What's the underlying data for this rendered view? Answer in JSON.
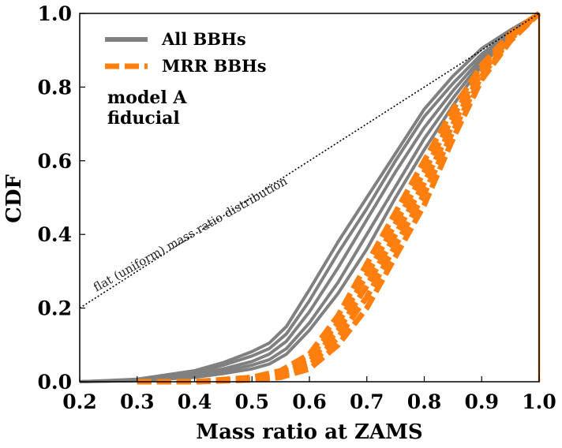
{
  "chart_data": {
    "type": "line",
    "xlabel": "Mass ratio at ZAMS",
    "ylabel": "CDF",
    "xlim": [
      0.2,
      1.0
    ],
    "ylim": [
      0.0,
      1.0
    ],
    "xticks": [
      "0.2",
      "0.3",
      "0.4",
      "0.5",
      "0.6",
      "0.7",
      "0.8",
      "0.9",
      "1.0"
    ],
    "yticks": [
      "0.0",
      "0.2",
      "0.4",
      "0.6",
      "0.8",
      "1.0"
    ],
    "legend": {
      "placement": "top-left",
      "entries": [
        {
          "label": "All BBHs",
          "color": "#808080",
          "style": "solid"
        },
        {
          "label": "MRR BBHs",
          "color": "#ff7f0e",
          "style": "dashed"
        }
      ]
    },
    "annotations": {
      "model_line1": "model A",
      "model_line2": "fiducial",
      "reference_label": "flat (uniform) mass ratio distribution"
    },
    "reference_line": {
      "x": [
        0.2,
        1.0
      ],
      "y": [
        0.2,
        1.0
      ]
    },
    "vertical_line": {
      "x": 1.0,
      "color": "#ff7f0e"
    },
    "series": [
      {
        "group": "all",
        "x": [
          0.2,
          0.3,
          0.4,
          0.45,
          0.5,
          0.53,
          0.56,
          0.6,
          0.65,
          0.7,
          0.75,
          0.8,
          0.85,
          0.9,
          0.95,
          1.0
        ],
        "y": [
          0.0,
          0.007,
          0.03,
          0.052,
          0.082,
          0.105,
          0.15,
          0.25,
          0.38,
          0.5,
          0.62,
          0.74,
          0.83,
          0.905,
          0.955,
          1.0
        ]
      },
      {
        "group": "all",
        "x": [
          0.2,
          0.3,
          0.4,
          0.45,
          0.5,
          0.53,
          0.56,
          0.6,
          0.65,
          0.7,
          0.75,
          0.8,
          0.85,
          0.9,
          0.95,
          1.0
        ],
        "y": [
          0.0,
          0.006,
          0.025,
          0.045,
          0.07,
          0.09,
          0.13,
          0.22,
          0.35,
          0.47,
          0.6,
          0.72,
          0.81,
          0.89,
          0.95,
          1.0
        ]
      },
      {
        "group": "all",
        "x": [
          0.2,
          0.3,
          0.4,
          0.45,
          0.5,
          0.53,
          0.56,
          0.6,
          0.65,
          0.7,
          0.75,
          0.8,
          0.85,
          0.9,
          0.95,
          1.0
        ],
        "y": [
          0.0,
          0.005,
          0.02,
          0.035,
          0.055,
          0.075,
          0.11,
          0.19,
          0.31,
          0.44,
          0.57,
          0.69,
          0.79,
          0.88,
          0.945,
          1.0
        ]
      },
      {
        "group": "all",
        "x": [
          0.2,
          0.3,
          0.4,
          0.45,
          0.5,
          0.53,
          0.56,
          0.6,
          0.65,
          0.7,
          0.75,
          0.8,
          0.85,
          0.9,
          0.95,
          1.0
        ],
        "y": [
          0.0,
          0.004,
          0.015,
          0.028,
          0.045,
          0.06,
          0.09,
          0.16,
          0.27,
          0.4,
          0.53,
          0.66,
          0.77,
          0.87,
          0.94,
          1.0
        ]
      },
      {
        "group": "all",
        "x": [
          0.2,
          0.3,
          0.4,
          0.45,
          0.5,
          0.53,
          0.56,
          0.6,
          0.65,
          0.7,
          0.75,
          0.8,
          0.85,
          0.9,
          0.95,
          1.0
        ],
        "y": [
          0.0,
          0.003,
          0.012,
          0.022,
          0.035,
          0.048,
          0.075,
          0.14,
          0.24,
          0.36,
          0.5,
          0.63,
          0.75,
          0.86,
          0.935,
          1.0
        ]
      },
      {
        "group": "mrr",
        "x": [
          0.3,
          0.4,
          0.5,
          0.55,
          0.6,
          0.65,
          0.7,
          0.75,
          0.8,
          0.85,
          0.9,
          0.95,
          1.0
        ],
        "y": [
          0.0,
          0.0,
          0.012,
          0.03,
          0.075,
          0.18,
          0.32,
          0.46,
          0.6,
          0.74,
          0.86,
          0.945,
          1.0
        ]
      },
      {
        "group": "mrr",
        "x": [
          0.3,
          0.4,
          0.5,
          0.55,
          0.6,
          0.65,
          0.7,
          0.75,
          0.8,
          0.85,
          0.9,
          0.95,
          1.0
        ],
        "y": [
          0.0,
          0.0,
          0.01,
          0.025,
          0.065,
          0.16,
          0.29,
          0.43,
          0.57,
          0.72,
          0.85,
          0.94,
          1.0
        ]
      },
      {
        "group": "mrr",
        "x": [
          0.3,
          0.4,
          0.5,
          0.55,
          0.6,
          0.65,
          0.7,
          0.75,
          0.8,
          0.85,
          0.9,
          0.95,
          1.0
        ],
        "y": [
          0.0,
          0.0,
          0.008,
          0.02,
          0.055,
          0.14,
          0.26,
          0.4,
          0.54,
          0.7,
          0.84,
          0.935,
          1.0
        ]
      },
      {
        "group": "mrr",
        "x": [
          0.3,
          0.4,
          0.5,
          0.55,
          0.6,
          0.65,
          0.7,
          0.75,
          0.8,
          0.85,
          0.9,
          0.95,
          1.0
        ],
        "y": [
          0.0,
          0.0,
          0.006,
          0.016,
          0.045,
          0.12,
          0.23,
          0.37,
          0.51,
          0.68,
          0.83,
          0.93,
          1.0
        ]
      },
      {
        "group": "mrr",
        "x": [
          0.3,
          0.4,
          0.5,
          0.55,
          0.6,
          0.65,
          0.7,
          0.75,
          0.8,
          0.85,
          0.9,
          0.95,
          1.0
        ],
        "y": [
          0.0,
          0.0,
          0.005,
          0.012,
          0.035,
          0.1,
          0.2,
          0.34,
          0.48,
          0.66,
          0.82,
          0.925,
          1.0
        ]
      }
    ]
  }
}
